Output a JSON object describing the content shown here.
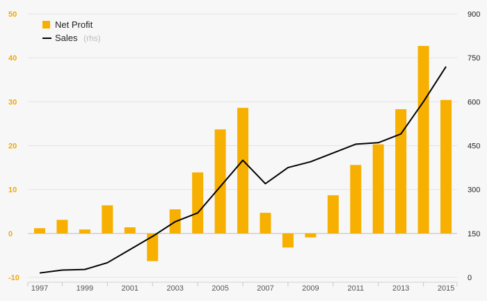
{
  "chart_data": {
    "type": "bar",
    "title": "",
    "x": [
      1997,
      1998,
      1999,
      2000,
      2001,
      2002,
      2003,
      2004,
      2005,
      2006,
      2007,
      2008,
      2009,
      2010,
      2011,
      2012,
      2013,
      2014,
      2015
    ],
    "x_tick_labels": [
      "1997",
      "1999",
      "2001",
      "2003",
      "2005",
      "2007",
      "2009",
      "2011",
      "2013",
      "2015"
    ],
    "series": [
      {
        "name": "Net Profit",
        "type": "bar",
        "axis": "left",
        "color": "#f7b000",
        "values": [
          1.2,
          3.1,
          0.9,
          6.4,
          1.4,
          -6.3,
          5.5,
          13.9,
          23.7,
          28.6,
          4.7,
          -3.2,
          -0.9,
          8.7,
          15.6,
          20.3,
          28.3,
          42.7,
          30.4
        ]
      },
      {
        "name": "Sales",
        "name_suffix": "(rhs)",
        "type": "line",
        "axis": "right",
        "color": "#000000",
        "values": [
          15,
          25,
          27,
          50,
          95,
          140,
          190,
          220,
          310,
          400,
          320,
          375,
          395,
          425,
          455,
          460,
          490,
          600,
          720
        ]
      }
    ],
    "ylim_left": [
      -10,
      50
    ],
    "yticks_left": [
      "-10",
      "0",
      "10",
      "20",
      "30",
      "40",
      "50"
    ],
    "ylim_right": [
      0,
      900
    ],
    "yticks_right": [
      "0",
      "150",
      "300",
      "450",
      "600",
      "750",
      "900"
    ],
    "legend": {
      "position": "top-left",
      "items": [
        {
          "label": "Net Profit",
          "sub": ""
        },
        {
          "label": "Sales",
          "sub": "(rhs)"
        }
      ]
    },
    "grid": true
  }
}
